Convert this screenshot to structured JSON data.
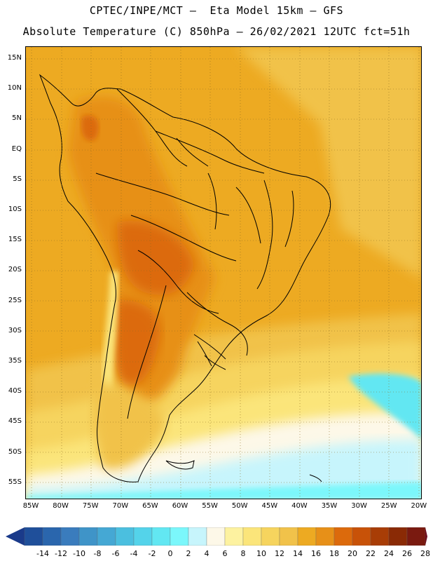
{
  "header": {
    "line1": "CPTEC/INPE/MCT –  Eta Model 15km – GFS",
    "line2": "Absolute Temperature (C) 850hPa – 26/02/2021 12UTC fct=51h"
  },
  "axes": {
    "latitude_labels": [
      "15N",
      "10N",
      "5N",
      "EQ",
      "5S",
      "10S",
      "15S",
      "20S",
      "25S",
      "30S",
      "35S",
      "40S",
      "45S",
      "50S",
      "55S"
    ],
    "longitude_labels": [
      "85W",
      "80W",
      "75W",
      "70W",
      "65W",
      "60W",
      "55W",
      "50W",
      "45W",
      "40W",
      "35W",
      "30W",
      "25W",
      "20W"
    ],
    "lat_range": [
      17.5,
      -57.5
    ],
    "lon_range": [
      -86.5,
      -20
    ]
  },
  "colorbar": {
    "labels": [
      "-14",
      "-12",
      "-10",
      "-8",
      "-6",
      "-4",
      "-2",
      "0",
      "2",
      "4",
      "6",
      "8",
      "10",
      "12",
      "14",
      "16",
      "18",
      "20",
      "22",
      "24",
      "26",
      "28"
    ],
    "colors": [
      "#1a3a8a",
      "#1f4f9a",
      "#2a66ad",
      "#3a7cbd",
      "#3f94c8",
      "#45a8d4",
      "#4bbfdf",
      "#54d3ea",
      "#62e7f2",
      "#7bf7fb",
      "#c7f5fc",
      "#fdf8e8",
      "#fdf2a0",
      "#fbe57a",
      "#f6d45e",
      "#f1c24a",
      "#edaa22",
      "#e79018",
      "#dc6a0c",
      "#c85208",
      "#a83d06",
      "#8a2a05",
      "#7a1a10",
      "#6d0f20"
    ]
  },
  "legend_meaning": {
    "min_temp_c": -14,
    "max_temp_c": 28
  }
}
